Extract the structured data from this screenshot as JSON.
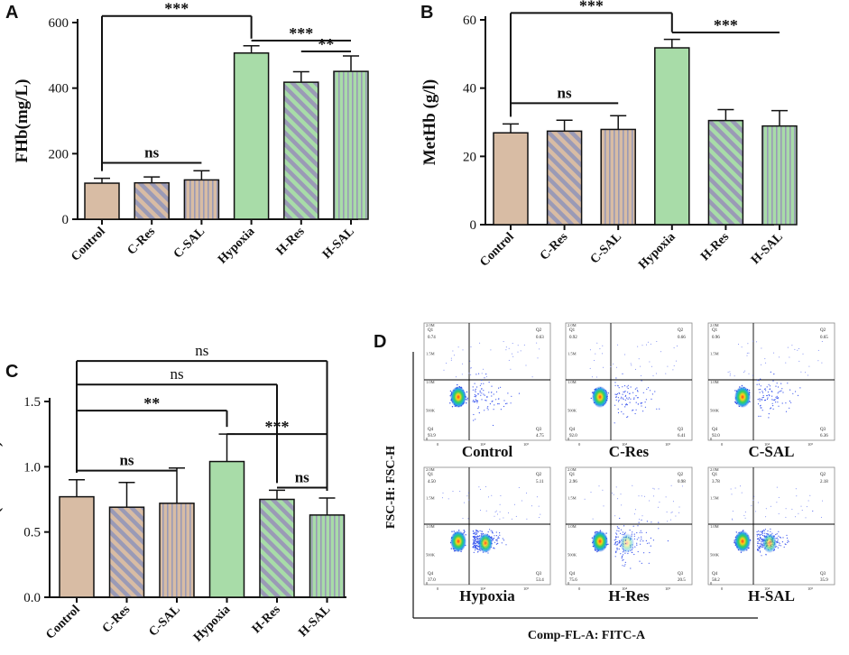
{
  "figure": {
    "colors": {
      "control": "#d8bca4",
      "hypoxia": "#a8dca8",
      "stripe": "#9a9ab6",
      "axis": "#111111",
      "text": "#111111"
    }
  },
  "chart_data": [
    {
      "panel": "A",
      "type": "bar",
      "title": "",
      "ylabel": "FHb(mg/L)",
      "xlabel": "",
      "categories": [
        "Control",
        "C-Res",
        "C-SAL",
        "Hypoxia",
        "H-Res",
        "H-SAL"
      ],
      "values": [
        110,
        111,
        120,
        507,
        418,
        451
      ],
      "errors": [
        15,
        18,
        28,
        22,
        32,
        47
      ],
      "patterns": [
        "solid",
        "diagonal",
        "vertical",
        "solid",
        "diagonal",
        "vertical"
      ],
      "groups": [
        "control",
        "control",
        "control",
        "hypoxia",
        "hypoxia",
        "hypoxia"
      ],
      "ylim": [
        0,
        600
      ],
      "yticks": [
        0,
        200,
        400,
        600
      ],
      "grid": false,
      "annotations": [
        {
          "text": "***",
          "from": 0,
          "to": 3,
          "type": "drop-both",
          "y": 620
        },
        {
          "text": "***",
          "from": 3,
          "to": 5,
          "type": "line",
          "y": 545
        },
        {
          "text": "**",
          "from": 4,
          "to": 5,
          "type": "line",
          "y": 512
        },
        {
          "text": "ns",
          "from": 0,
          "to": 2,
          "type": "line",
          "y": 172
        }
      ]
    },
    {
      "panel": "B",
      "type": "bar",
      "title": "",
      "ylabel": "MetHb (g/l)",
      "xlabel": "",
      "categories": [
        "Control",
        "C-Res",
        "C-SAL",
        "Hypoxia",
        "H-Res",
        "H-SAL"
      ],
      "values": [
        26.9,
        27.4,
        27.9,
        51.8,
        30.5,
        28.9
      ],
      "errors": [
        2.6,
        3.2,
        4.0,
        2.5,
        3.2,
        4.5
      ],
      "patterns": [
        "solid",
        "diagonal",
        "vertical",
        "solid",
        "diagonal",
        "vertical"
      ],
      "groups": [
        "control",
        "control",
        "control",
        "hypoxia",
        "hypoxia",
        "hypoxia"
      ],
      "ylim": [
        0,
        60
      ],
      "yticks": [
        0,
        20,
        40,
        60
      ],
      "grid": false,
      "annotations": [
        {
          "text": "***",
          "from": 0,
          "to": 3,
          "type": "drop-both",
          "y": 62
        },
        {
          "text": "***",
          "from": 3,
          "to": 5,
          "type": "line",
          "y": 56.3
        },
        {
          "text": "ns",
          "from": 0,
          "to": 2,
          "type": "line",
          "y": 35.6
        }
      ]
    },
    {
      "panel": "C",
      "type": "bar",
      "title": "",
      "ylabel": "MDA (nmol/ml)",
      "xlabel": "",
      "categories": [
        "Control",
        "C-Res",
        "C-SAL",
        "Hypoxia",
        "H-Res",
        "H-SAL"
      ],
      "values": [
        0.77,
        0.69,
        0.72,
        1.04,
        0.75,
        0.63
      ],
      "errors": [
        0.13,
        0.19,
        0.27,
        0.21,
        0.07,
        0.13
      ],
      "patterns": [
        "solid",
        "diagonal",
        "vertical",
        "solid",
        "diagonal",
        "vertical"
      ],
      "groups": [
        "control",
        "control",
        "control",
        "hypoxia",
        "hypoxia",
        "hypoxia"
      ],
      "ylim": [
        0,
        1.5
      ],
      "yticks": [
        0.0,
        0.5,
        1.0,
        1.5
      ],
      "ytick_labels": [
        "0.0",
        "0.5",
        "1.0",
        "1.5"
      ],
      "grid": false,
      "annotations": [
        {
          "text": "ns",
          "from": 0,
          "to": 5,
          "type": "drop-both",
          "y": 1.81
        },
        {
          "text": "ns",
          "from": 0,
          "to": 4,
          "type": "drop-both",
          "y": 1.63
        },
        {
          "text": "**",
          "from": 0,
          "to": 3,
          "type": "drop-both",
          "y": 1.43
        },
        {
          "text": "***",
          "from": 3,
          "to": 5,
          "type": "line",
          "y": 1.25
        },
        {
          "text": "ns",
          "from": 0,
          "to": 2,
          "type": "line",
          "y": 0.97
        },
        {
          "text": "ns",
          "from": 4,
          "to": 5,
          "type": "line",
          "y": 0.84
        }
      ]
    },
    {
      "panel": "D",
      "type": "scatter",
      "title": "",
      "xlabel": "Comp-FL-A: FITC-A",
      "ylabel": "FSC-H: FSC-H",
      "ytick_labels": [
        "0",
        "500K",
        "1.0M",
        "1.5M",
        "2.0M"
      ],
      "xtick_labels": [
        "0",
        "10⁴",
        "10⁵"
      ],
      "plots": [
        {
          "name": "Control",
          "Q1": "0.74",
          "Q2": "0.63",
          "Q3": "4.75",
          "Q4": "93.9"
        },
        {
          "name": "C-Res",
          "Q1": "0.92",
          "Q2": "0.66",
          "Q3": "6.41",
          "Q4": "92.0"
        },
        {
          "name": "C-SAL",
          "Q1": "0.96",
          "Q2": "0.65",
          "Q3": "6.36",
          "Q4": "92.0"
        },
        {
          "name": "Hypoxia",
          "Q1": "4.50",
          "Q2": "5.11",
          "Q3": "53.4",
          "Q4": "37.0"
        },
        {
          "name": "H-Res",
          "Q1": "2.96",
          "Q2": "0.98",
          "Q3": "20.5",
          "Q4": "75.6"
        },
        {
          "name": "H-SAL",
          "Q1": "3.78",
          "Q2": "2.18",
          "Q3": "35.9",
          "Q4": "58.2"
        }
      ]
    }
  ]
}
